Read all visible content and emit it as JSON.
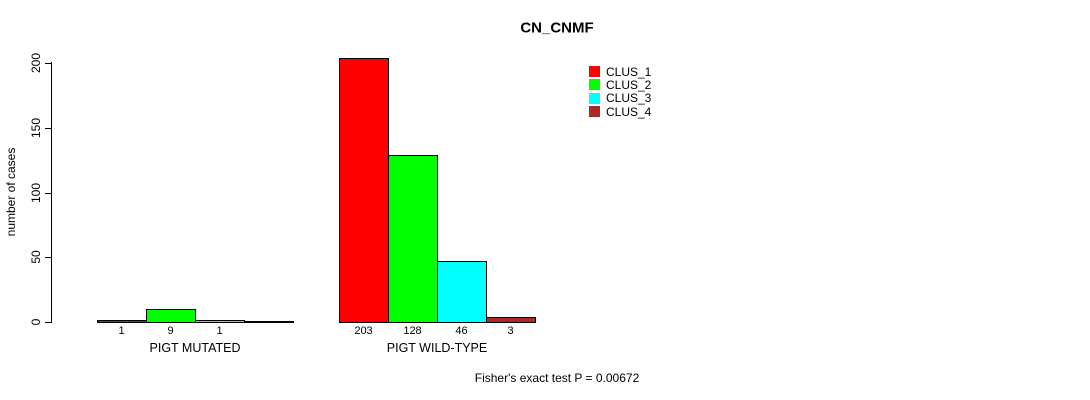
{
  "chart_data": {
    "type": "bar",
    "title": "CN_CNMF",
    "ylabel": "number of cases",
    "xlabel": "",
    "ylim": [
      0,
      200
    ],
    "yticks": [
      0,
      50,
      100,
      150,
      200
    ],
    "grid": false,
    "legend_position": "top-right",
    "categories": [
      "PIGT MUTATED",
      "PIGT WILD-TYPE"
    ],
    "series": [
      {
        "name": "CLUS_1",
        "color": "#ff0000",
        "values": [
          1,
          203
        ]
      },
      {
        "name": "CLUS_2",
        "color": "#00ff00",
        "values": [
          9,
          128
        ]
      },
      {
        "name": "CLUS_3",
        "color": "#00ffff",
        "values": [
          1,
          46
        ]
      },
      {
        "name": "CLUS_4",
        "color": "#a52a2a",
        "values": [
          0,
          3
        ]
      }
    ],
    "bar_value_labels": {
      "PIGT MUTATED": [
        "1",
        "9",
        "1",
        ""
      ],
      "PIGT WILD-TYPE": [
        "203",
        "128",
        "46",
        "3"
      ]
    },
    "annotation": "Fisher's exact test P = 0.00672"
  },
  "colors": {
    "background": "#ffffff",
    "axis": "#000000",
    "text": "#000000"
  }
}
